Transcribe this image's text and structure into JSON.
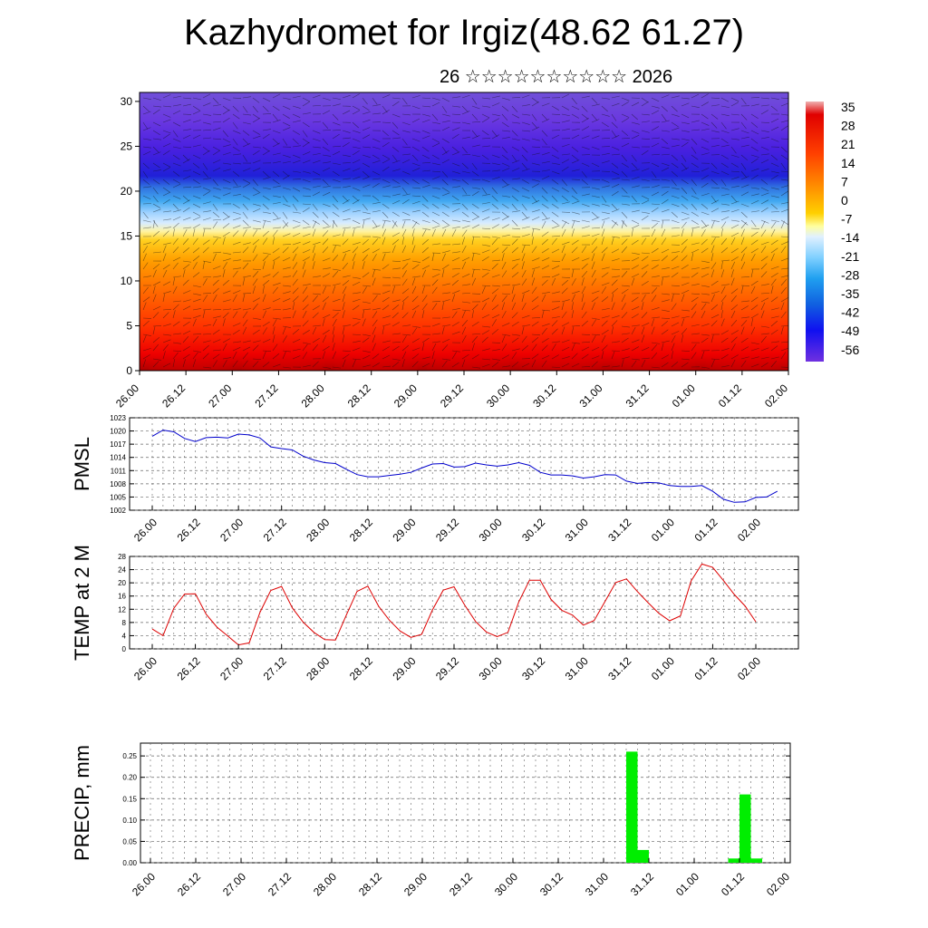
{
  "header": {
    "title": "Kazhydromet for Irgiz(48.62 61.27)",
    "subtitle": "26 ☆☆☆☆☆☆☆☆☆☆ 2026"
  },
  "colors": {
    "pmsl_line": "#0000cc",
    "temp_line": "#dd0000",
    "precip_bar": "#00ee00",
    "grid": "#555555"
  },
  "chart_data": [
    {
      "id": "upper-air",
      "type": "heatmap",
      "description_axis": "height",
      "yticks": [
        0,
        5,
        10,
        15,
        20,
        25,
        30
      ],
      "ylim": [
        0,
        31
      ],
      "x_ticks": [
        "26.00",
        "26.12",
        "27.00",
        "27.12",
        "28.00",
        "28.12",
        "29.00",
        "29.12",
        "30.00",
        "30.12",
        "31.00",
        "31.12",
        "01.00",
        "01.12",
        "02.00"
      ],
      "colorbar_labels": [
        "35",
        "28",
        "21",
        "14",
        "7",
        "0",
        "-7",
        "-14",
        "-21",
        "-28",
        "-35",
        "-42",
        "-49",
        "-56"
      ]
    },
    {
      "id": "pmsl",
      "type": "line",
      "ylabel": "PMSL",
      "ylim": [
        1002,
        1023
      ],
      "yticks": [
        1002,
        1005,
        1008,
        1011,
        1014,
        1017,
        1020,
        1023
      ],
      "x_ticks": [
        "26.00",
        "26.12",
        "27.00",
        "27.12",
        "28.00",
        "28.12",
        "29.00",
        "29.12",
        "30.00",
        "30.12",
        "31.00",
        "31.12",
        "01.00",
        "01.12",
        "02.00"
      ],
      "series": [
        {
          "values": [
            1018.8,
            1020.2,
            1019.8,
            1018.3,
            1017.6,
            1018.5,
            1018.6,
            1018.4,
            1019.3,
            1019.1,
            1018.4,
            1016.4,
            1016.0,
            1015.7,
            1014.3,
            1013.4,
            1012.8,
            1012.6,
            1011.3,
            1010.1,
            1009.6,
            1009.6,
            1009.9,
            1010.2,
            1010.6,
            1011.6,
            1012.5,
            1012.6,
            1011.8,
            1011.9,
            1012.7,
            1012.3,
            1012.0,
            1012.3,
            1012.8,
            1012.2,
            1010.6,
            1010.0,
            1010.0,
            1009.8,
            1009.3,
            1009.6,
            1010.1,
            1010.0,
            1008.6,
            1008.1,
            1008.3,
            1008.2,
            1007.6,
            1007.4,
            1007.4,
            1007.6,
            1006.3,
            1004.5,
            1003.8,
            1003.9,
            1004.9,
            1005.0,
            1006.3
          ]
        }
      ]
    },
    {
      "id": "temp",
      "type": "line",
      "ylabel": "TEMP at 2 M",
      "ylim": [
        0,
        28
      ],
      "yticks": [
        0,
        4,
        8,
        12,
        16,
        20,
        24,
        28
      ],
      "x_ticks": [
        "26.00",
        "26.12",
        "27.00",
        "27.12",
        "28.00",
        "28.12",
        "29.00",
        "29.12",
        "30.00",
        "30.12",
        "31.00",
        "31.12",
        "01.00",
        "01.12",
        "02.00"
      ],
      "series": [
        {
          "values": [
            6.0,
            4.0,
            12.3,
            16.6,
            16.7,
            10.5,
            6.6,
            3.9,
            1.2,
            1.8,
            11.1,
            17.7,
            18.9,
            12.4,
            8.1,
            5.0,
            2.8,
            2.7,
            10.2,
            17.4,
            19.0,
            12.9,
            8.7,
            5.4,
            3.5,
            4.4,
            11.8,
            17.8,
            18.8,
            13.2,
            8.3,
            5.1,
            3.7,
            5.0,
            14.2,
            20.8,
            20.8,
            15.0,
            11.7,
            10.2,
            7.2,
            8.6,
            14.3,
            20.1,
            21.2,
            17.4,
            14.0,
            10.8,
            8.5,
            10.0,
            20.6,
            25.7,
            24.7,
            20.7,
            16.5,
            13.0,
            8.2
          ]
        }
      ]
    },
    {
      "id": "precip",
      "type": "bar",
      "ylabel": "PRECIP, mm",
      "ylim": [
        0,
        0.28
      ],
      "yticks": [
        "0.00",
        "0.05",
        "0.10",
        "0.15",
        "0.20",
        "0.25"
      ],
      "x_ticks": [
        "26.00",
        "26.12",
        "27.00",
        "27.12",
        "28.00",
        "28.12",
        "29.00",
        "29.12",
        "30.00",
        "30.12",
        "31.00",
        "31.12",
        "01.00",
        "01.12",
        "02.00"
      ],
      "bars": [
        {
          "day": 5.25,
          "value": 0.26
        },
        {
          "day": 5.375,
          "value": 0.03
        },
        {
          "day": 6.375,
          "value": 0.01
        },
        {
          "day": 6.5,
          "value": 0.16
        },
        {
          "day": 6.625,
          "value": 0.01
        }
      ]
    }
  ]
}
